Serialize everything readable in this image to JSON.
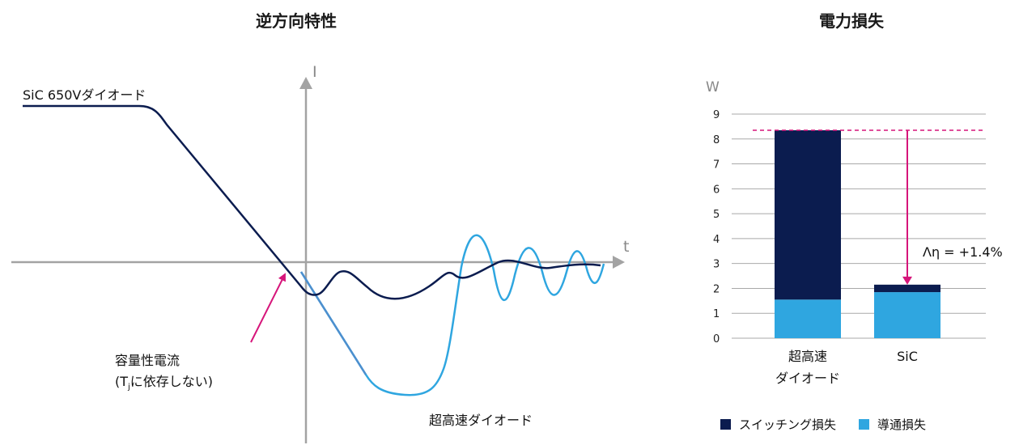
{
  "colors": {
    "dark_navy": "#0b1c4f",
    "light_blue": "#2fa6e0",
    "axis_gray": "#a3a3a3",
    "magenta": "#d6157a",
    "grid_gray": "#a9a9a9"
  },
  "left_chart": {
    "title": "逆方向特性",
    "y_axis_label": "I",
    "x_axis_label": "t",
    "curve_label_sic": "SiC 650Vダイオード",
    "curve_label_fast": "超高速ダイオード",
    "annotation_line1": "容量性電流",
    "annotation_line2_prefix": "(T",
    "annotation_line2_sub": "j",
    "annotation_line2_suffix": "に依存しない)"
  },
  "right_chart": {
    "title": "電力損失",
    "y_unit": "W",
    "improvement_label": "Λη = +1.4%",
    "legend": [
      {
        "label": "スイッチング損失",
        "color": "#0b1c4f"
      },
      {
        "label": "導通損失",
        "color": "#2fa6e0"
      }
    ]
  },
  "chart_data": {
    "type": "bar",
    "stacked": true,
    "title": "電力損失",
    "ylabel": "W",
    "ylim": [
      0,
      9
    ],
    "yticks": [
      0,
      1,
      2,
      3,
      4,
      5,
      6,
      7,
      8,
      9
    ],
    "categories": [
      {
        "line1": "超高速",
        "line2": "ダイオード"
      },
      {
        "line1": "SiC",
        "line2": ""
      }
    ],
    "series": [
      {
        "name": "導通損失",
        "color": "#2fa6e0",
        "values": [
          1.55,
          1.85
        ]
      },
      {
        "name": "スイッチング損失",
        "color": "#0b1c4f",
        "values": [
          6.8,
          0.3
        ]
      }
    ],
    "reference_line": 8.35
  }
}
